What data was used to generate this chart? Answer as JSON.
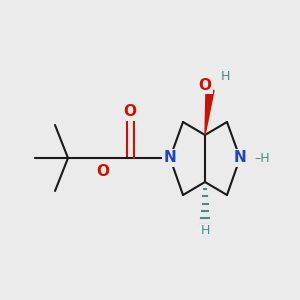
{
  "background_color": "#ebebeb",
  "figsize": [
    3.0,
    3.0
  ],
  "dpi": 100,
  "bond_color": "#1a1a1a",
  "N_color": "#2244bb",
  "O_color": "#cc1100",
  "H_color": "#4a8a8a",
  "font_size_atom": 11,
  "font_size_H": 9,
  "xlim": [
    0,
    300
  ],
  "ylim": [
    0,
    300
  ]
}
